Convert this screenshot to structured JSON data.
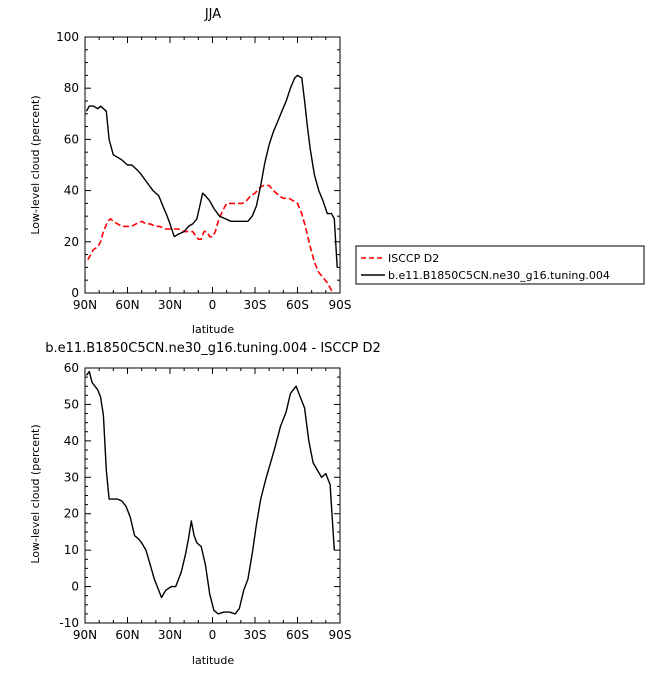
{
  "chart_data": [
    {
      "type": "line",
      "title": "JJA",
      "xlabel": "latitude",
      "ylabel": "Low-level cloud (percent)",
      "ylim": [
        0,
        100
      ],
      "xlim": [
        90,
        -90
      ],
      "yticks": [
        "0",
        "20",
        "40",
        "60",
        "80",
        "100"
      ],
      "xticks": [
        "90N",
        "60N",
        "30N",
        "0",
        "30S",
        "60S",
        "90S"
      ],
      "xtick_values": [
        90,
        60,
        30,
        0,
        -30,
        -60,
        -90
      ],
      "legend_position": "right",
      "series": [
        {
          "name": "ISCCP D2",
          "color": "#ff0000",
          "dash": "dashed",
          "points": [
            [
              88,
              13
            ],
            [
              86,
              15
            ],
            [
              84,
              17
            ],
            [
              81,
              18
            ],
            [
              79,
              20
            ],
            [
              77,
              24
            ],
            [
              74,
              28
            ],
            [
              72,
              29
            ],
            [
              70,
              28
            ],
            [
              67,
              27
            ],
            [
              64,
              26
            ],
            [
              60,
              26
            ],
            [
              57,
              26
            ],
            [
              54,
              27
            ],
            [
              50,
              28
            ],
            [
              47,
              27
            ],
            [
              44,
              27
            ],
            [
              40,
              26
            ],
            [
              37,
              26
            ],
            [
              34,
              25
            ],
            [
              30,
              25
            ],
            [
              27,
              25
            ],
            [
              24,
              25
            ],
            [
              20,
              24
            ],
            [
              17,
              24
            ],
            [
              14,
              24
            ],
            [
              10,
              21
            ],
            [
              8,
              21
            ],
            [
              6,
              24
            ],
            [
              4,
              24
            ],
            [
              2,
              22
            ],
            [
              0,
              22
            ],
            [
              -2,
              24
            ],
            [
              -4,
              28
            ],
            [
              -7,
              32
            ],
            [
              -10,
              35
            ],
            [
              -14,
              35
            ],
            [
              -18,
              35
            ],
            [
              -21,
              35
            ],
            [
              -24,
              36
            ],
            [
              -27,
              38
            ],
            [
              -30,
              39
            ],
            [
              -33,
              41
            ],
            [
              -36,
              42
            ],
            [
              -40,
              42
            ],
            [
              -43,
              40
            ],
            [
              -47,
              38
            ],
            [
              -50,
              37
            ],
            [
              -54,
              37
            ],
            [
              -57,
              36
            ],
            [
              -60,
              35
            ],
            [
              -63,
              31
            ],
            [
              -66,
              25
            ],
            [
              -69,
              18
            ],
            [
              -72,
              12
            ],
            [
              -75,
              8
            ],
            [
              -78,
              6
            ],
            [
              -81,
              4
            ],
            [
              -84,
              1
            ],
            [
              -86,
              0
            ]
          ]
        },
        {
          "name": "b.e11.B1850C5CN.ne30_g16.tuning.004",
          "color": "#000000",
          "dash": "solid",
          "points": [
            [
              89,
              71
            ],
            [
              87,
              73
            ],
            [
              84,
              73
            ],
            [
              81,
              72
            ],
            [
              79,
              73
            ],
            [
              77,
              72
            ],
            [
              75,
              71
            ],
            [
              73,
              60
            ],
            [
              70,
              54
            ],
            [
              67,
              53
            ],
            [
              64,
              52
            ],
            [
              60,
              50
            ],
            [
              57,
              50
            ],
            [
              53,
              48
            ],
            [
              50,
              46
            ],
            [
              46,
              43
            ],
            [
              42,
              40
            ],
            [
              38,
              38
            ],
            [
              35,
              34
            ],
            [
              32,
              30
            ],
            [
              30,
              27
            ],
            [
              27,
              22
            ],
            [
              24,
              23
            ],
            [
              20,
              24
            ],
            [
              17,
              26
            ],
            [
              14,
              27
            ],
            [
              11,
              29
            ],
            [
              9,
              34
            ],
            [
              7,
              39
            ],
            [
              5,
              38
            ],
            [
              2,
              36
            ],
            [
              -1,
              33
            ],
            [
              -5,
              30
            ],
            [
              -9,
              29
            ],
            [
              -13,
              28
            ],
            [
              -17,
              28
            ],
            [
              -21,
              28
            ],
            [
              -25,
              28
            ],
            [
              -28,
              30
            ],
            [
              -31,
              34
            ],
            [
              -34,
              42
            ],
            [
              -37,
              51
            ],
            [
              -40,
              58
            ],
            [
              -43,
              63
            ],
            [
              -46,
              67
            ],
            [
              -49,
              71
            ],
            [
              -52,
              75
            ],
            [
              -55,
              80
            ],
            [
              -58,
              84
            ],
            [
              -60,
              85
            ],
            [
              -63,
              84
            ],
            [
              -65,
              75
            ],
            [
              -67,
              65
            ],
            [
              -69,
              56
            ],
            [
              -72,
              46
            ],
            [
              -75,
              40
            ],
            [
              -78,
              36
            ],
            [
              -81,
              31
            ],
            [
              -84,
              31
            ],
            [
              -86,
              29
            ],
            [
              -88,
              10
            ]
          ]
        }
      ]
    },
    {
      "type": "line",
      "title": "b.e11.B1850C5CN.ne30_g16.tuning.004 - ISCCP D2",
      "xlabel": "latitude",
      "ylabel": "Low-level cloud (percent)",
      "ylim": [
        -10,
        60
      ],
      "xlim": [
        90,
        -90
      ],
      "yticks": [
        "-10",
        "0",
        "10",
        "20",
        "30",
        "40",
        "50",
        "60"
      ],
      "xticks": [
        "90N",
        "60N",
        "30N",
        "0",
        "30S",
        "60S",
        "90S"
      ],
      "xtick_values": [
        90,
        60,
        30,
        0,
        -30,
        -60,
        -90
      ],
      "series": [
        {
          "color": "#000000",
          "dash": "solid",
          "points": [
            [
              89,
              58
            ],
            [
              87,
              59
            ],
            [
              85,
              56
            ],
            [
              83,
              55
            ],
            [
              81,
              54
            ],
            [
              79,
              52
            ],
            [
              77,
              47
            ],
            [
              75,
              32
            ],
            [
              73,
              24
            ],
            [
              70,
              24
            ],
            [
              67,
              24
            ],
            [
              64,
              23.5
            ],
            [
              61,
              22
            ],
            [
              58,
              19
            ],
            [
              55,
              14
            ],
            [
              52,
              13
            ],
            [
              50,
              12
            ],
            [
              47,
              10
            ],
            [
              44,
              6
            ],
            [
              41,
              2
            ],
            [
              38,
              -1
            ],
            [
              36,
              -3
            ],
            [
              33,
              -1
            ],
            [
              29,
              0
            ],
            [
              26,
              0
            ],
            [
              22,
              4
            ],
            [
              19,
              9
            ],
            [
              17,
              13
            ],
            [
              15,
              18
            ],
            [
              13,
              14
            ],
            [
              11,
              12
            ],
            [
              8,
              11
            ],
            [
              5,
              6
            ],
            [
              2,
              -2
            ],
            [
              -1,
              -6.5
            ],
            [
              -4,
              -7.5
            ],
            [
              -8,
              -7
            ],
            [
              -12,
              -7
            ],
            [
              -16,
              -7.5
            ],
            [
              -19,
              -6
            ],
            [
              -22,
              -1
            ],
            [
              -25,
              2
            ],
            [
              -28,
              9
            ],
            [
              -31,
              17
            ],
            [
              -34,
              24
            ],
            [
              -38,
              30
            ],
            [
              -41,
              34
            ],
            [
              -44,
              38
            ],
            [
              -48,
              44
            ],
            [
              -52,
              48
            ],
            [
              -55,
              53
            ],
            [
              -59,
              55
            ],
            [
              -62,
              52
            ],
            [
              -65,
              49
            ],
            [
              -68,
              40
            ],
            [
              -71,
              34
            ],
            [
              -74,
              32
            ],
            [
              -77,
              30
            ],
            [
              -80,
              31
            ],
            [
              -83,
              28
            ],
            [
              -86,
              10
            ]
          ]
        }
      ]
    }
  ]
}
